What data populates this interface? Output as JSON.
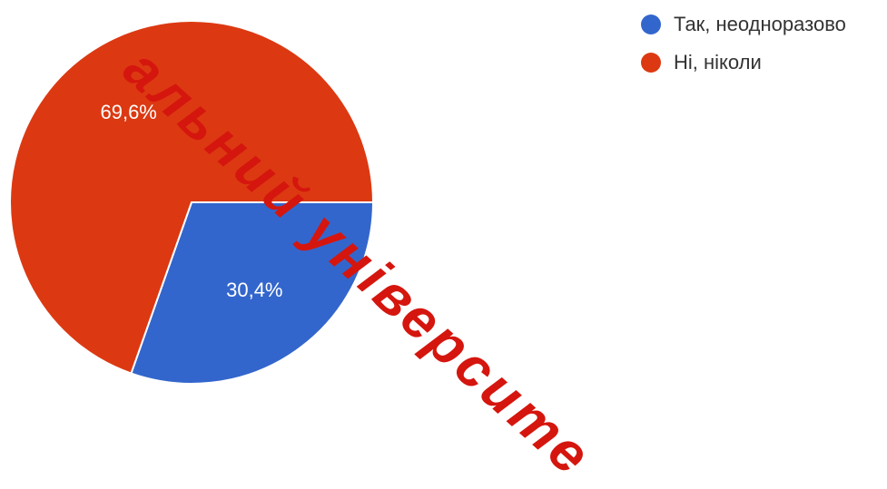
{
  "chart_data": {
    "type": "pie",
    "slices": [
      {
        "label": "Так, неодноразово",
        "value": 30.4,
        "value_label": "30,4%",
        "color": "#3366CC"
      },
      {
        "label": "Ні, ніколи",
        "value": 69.6,
        "value_label": "69,6%",
        "color": "#DC3912"
      }
    ],
    "legend_placement": "top-right"
  },
  "watermark": {
    "text": "альний університе",
    "color": "#D5160E"
  }
}
